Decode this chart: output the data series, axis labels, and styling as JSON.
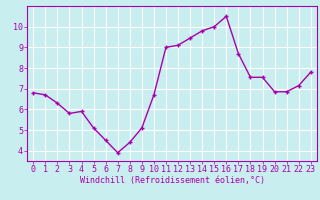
{
  "x": [
    0,
    1,
    2,
    3,
    4,
    5,
    6,
    7,
    8,
    9,
    10,
    11,
    12,
    13,
    14,
    15,
    16,
    17,
    18,
    19,
    20,
    21,
    22,
    23
  ],
  "y": [
    6.8,
    6.7,
    6.3,
    5.8,
    5.9,
    5.1,
    4.5,
    3.9,
    4.4,
    5.1,
    6.7,
    9.0,
    9.1,
    9.45,
    9.8,
    10.0,
    10.5,
    8.7,
    7.55,
    7.55,
    6.85,
    6.85,
    7.15,
    7.8
  ],
  "line_color": "#aa00aa",
  "marker": "+",
  "marker_size": 3,
  "linewidth": 1.0,
  "markeredgewidth": 1.0,
  "bg_color": "#c8eef0",
  "grid_color": "#ffffff",
  "xlabel": "Windchill (Refroidissement éolien,°C)",
  "xlabel_color": "#aa00aa",
  "xlabel_fontsize": 6.0,
  "tick_color": "#aa00aa",
  "tick_fontsize": 6.0,
  "ylim": [
    3.5,
    11.0
  ],
  "xlim": [
    -0.5,
    23.5
  ],
  "yticks": [
    4,
    5,
    6,
    7,
    8,
    9,
    10
  ],
  "xticks": [
    0,
    1,
    2,
    3,
    4,
    5,
    6,
    7,
    8,
    9,
    10,
    11,
    12,
    13,
    14,
    15,
    16,
    17,
    18,
    19,
    20,
    21,
    22,
    23
  ]
}
